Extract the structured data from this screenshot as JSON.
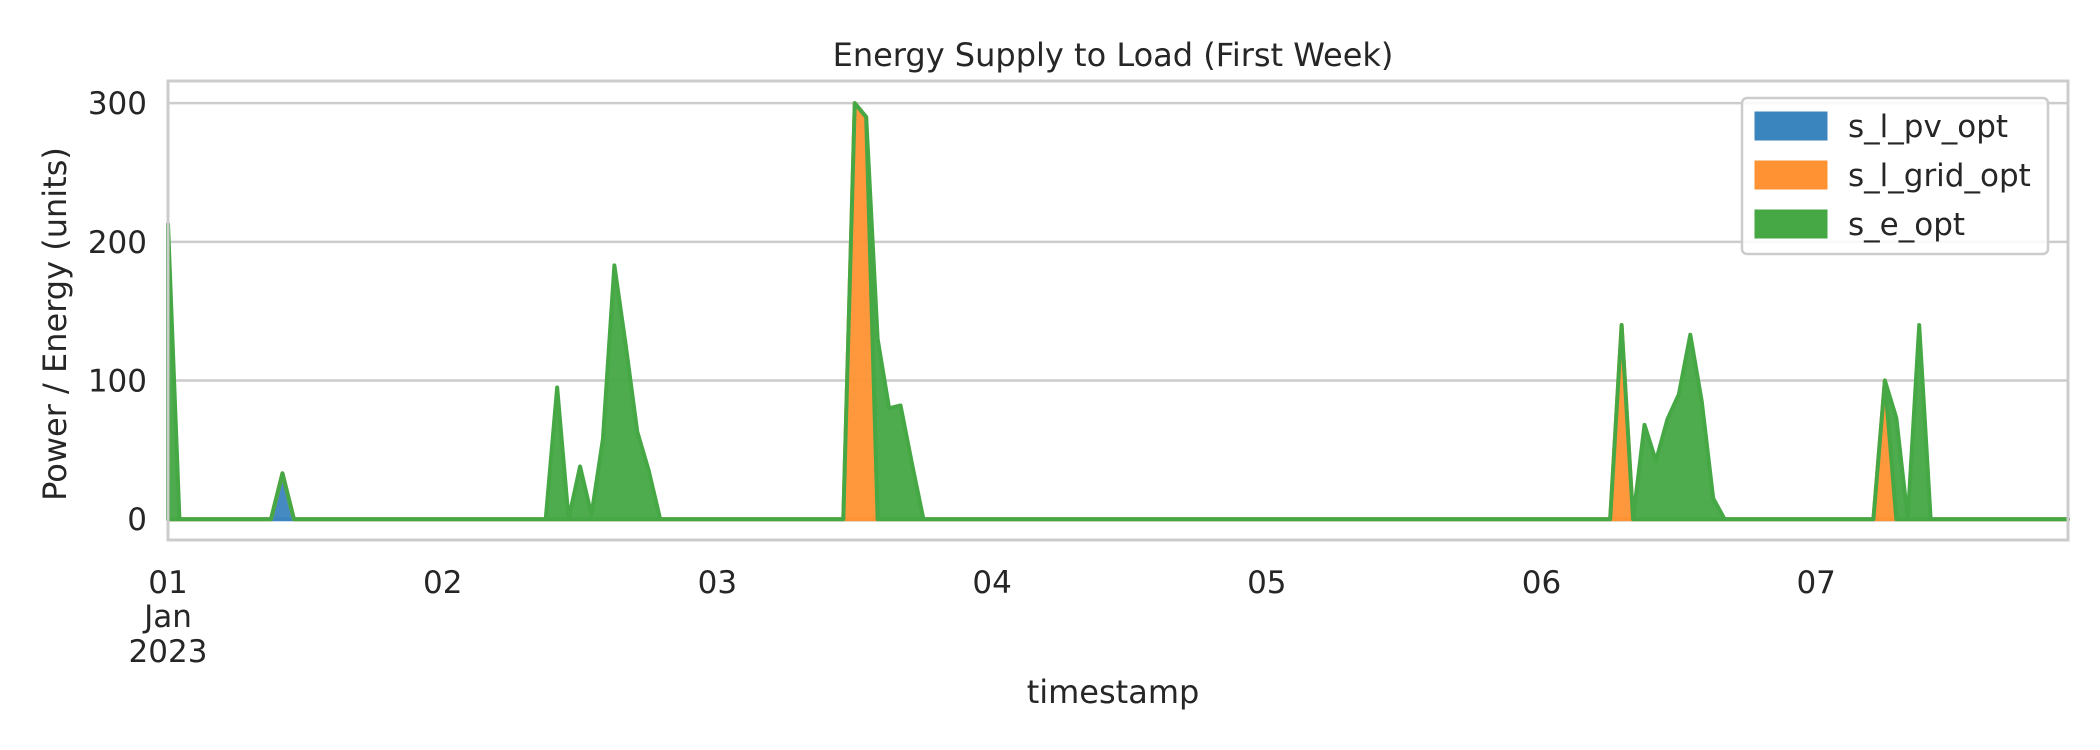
{
  "chart_data": {
    "type": "area",
    "title": "Energy Supply to Load (First Week)",
    "xlabel": "timestamp",
    "ylabel": "Power / Energy (units)",
    "stacked": true,
    "legend_position": "top-right",
    "grid": true,
    "xlim": [
      "2023-01-01 00:00",
      "2023-01-07 22:00"
    ],
    "ylim": [
      -15,
      316
    ],
    "yticks": [
      0,
      100,
      200,
      300
    ],
    "xticks": [
      {
        "at": "2023-01-01 00:00",
        "label": "01",
        "sublabels": [
          "Jan",
          "2023"
        ]
      },
      {
        "at": "2023-01-02 00:00",
        "label": "02"
      },
      {
        "at": "2023-01-03 00:00",
        "label": "03"
      },
      {
        "at": "2023-01-04 00:00",
        "label": "04"
      },
      {
        "at": "2023-01-05 00:00",
        "label": "05"
      },
      {
        "at": "2023-01-06 00:00",
        "label": "06"
      },
      {
        "at": "2023-01-07 00:00",
        "label": "07"
      }
    ],
    "x": [
      "2023-01-01 00:00",
      "2023-01-01 01:00",
      "2023-01-01 09:00",
      "2023-01-01 10:00",
      "2023-01-01 11:00",
      "2023-01-02 09:00",
      "2023-01-02 10:00",
      "2023-01-02 11:00",
      "2023-01-02 12:00",
      "2023-01-02 13:00",
      "2023-01-02 14:00",
      "2023-01-02 15:00",
      "2023-01-02 16:00",
      "2023-01-02 17:00",
      "2023-01-02 18:00",
      "2023-01-02 19:00",
      "2023-01-03 11:00",
      "2023-01-03 12:00",
      "2023-01-03 13:00",
      "2023-01-03 14:00",
      "2023-01-03 15:00",
      "2023-01-03 16:00",
      "2023-01-03 17:00",
      "2023-01-03 18:00",
      "2023-01-03 19:00",
      "2023-01-06 06:00",
      "2023-01-06 07:00",
      "2023-01-06 08:00",
      "2023-01-06 09:00",
      "2023-01-06 10:00",
      "2023-01-06 11:00",
      "2023-01-06 12:00",
      "2023-01-06 13:00",
      "2023-01-06 14:00",
      "2023-01-06 15:00",
      "2023-01-06 16:00",
      "2023-01-06 17:00",
      "2023-01-07 05:00",
      "2023-01-07 06:00",
      "2023-01-07 07:00",
      "2023-01-07 08:00",
      "2023-01-07 09:00",
      "2023-01-07 10:00",
      "2023-01-07 22:00"
    ],
    "series": [
      {
        "name": "s_l_pv_opt",
        "color": "#3b85bf",
        "values": [
          0,
          0,
          0,
          33,
          0,
          0,
          0,
          0,
          0,
          0,
          0,
          0,
          0,
          0,
          0,
          0,
          0,
          0,
          0,
          0,
          0,
          0,
          0,
          0,
          0,
          0,
          0,
          0,
          0,
          0,
          0,
          0,
          0,
          0,
          0,
          0,
          0,
          0,
          0,
          0,
          0,
          0,
          0,
          0
        ]
      },
      {
        "name": "s_l_grid_opt",
        "color": "#ff9232",
        "values": [
          0,
          0,
          0,
          0,
          0,
          0,
          0,
          0,
          0,
          0,
          0,
          0,
          0,
          0,
          0,
          0,
          0,
          300,
          290,
          0,
          0,
          0,
          0,
          0,
          0,
          0,
          140,
          0,
          0,
          0,
          0,
          0,
          0,
          0,
          0,
          0,
          0,
          0,
          100,
          0,
          0,
          0,
          0,
          0
        ]
      },
      {
        "name": "s_e_opt",
        "color": "#45a845",
        "values": [
          213,
          0,
          0,
          0,
          0,
          0,
          95,
          0,
          38,
          3,
          58,
          183,
          125,
          63,
          35,
          0,
          0,
          0,
          0,
          130,
          80,
          82,
          40,
          0,
          0,
          0,
          0,
          0,
          68,
          42,
          72,
          90,
          133,
          85,
          15,
          0,
          0,
          0,
          0,
          73,
          0,
          140,
          0,
          0
        ]
      }
    ]
  }
}
